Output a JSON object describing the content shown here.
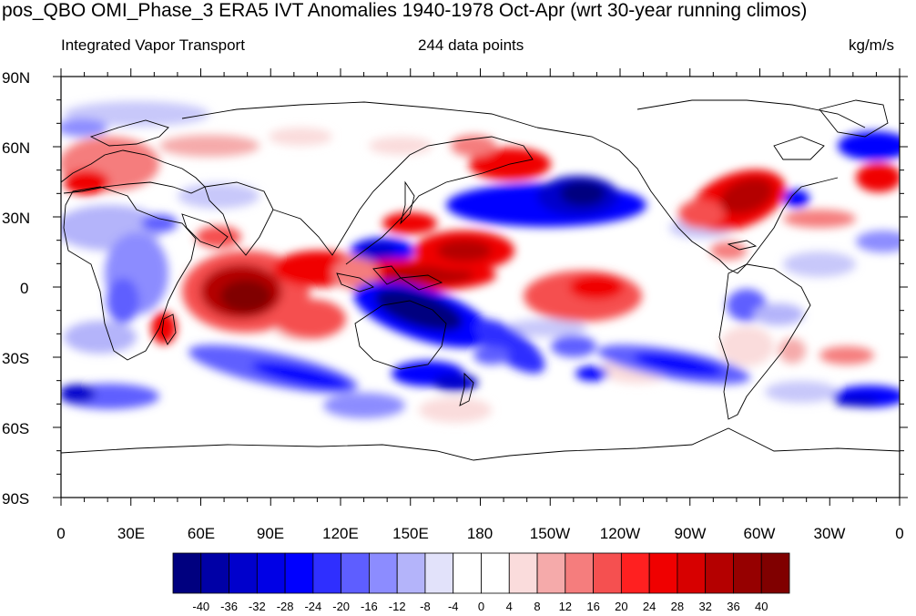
{
  "title": "pos_QBO OMI_Phase_3 ERA5 IVT Anomalies 1940-1978 Oct-Apr (wrt 30-year running climos)",
  "subtitle_left": "Integrated Vapor Transport",
  "subtitle_center": "244 data points",
  "subtitle_right": "kg/m/s",
  "lat_ticks": [
    "90N",
    "60N",
    "30N",
    "0",
    "30S",
    "60S",
    "90S"
  ],
  "lon_ticks": [
    "0",
    "30E",
    "60E",
    "90E",
    "120E",
    "150E",
    "180",
    "150W",
    "120W",
    "90W",
    "60W",
    "30W",
    "0"
  ],
  "colorbar": {
    "labels": [
      "-40",
      "-36",
      "-32",
      "-28",
      "-24",
      "-20",
      "-16",
      "-12",
      "-8",
      "-4",
      "0",
      "4",
      "8",
      "12",
      "16",
      "20",
      "24",
      "28",
      "32",
      "36",
      "40"
    ],
    "colors": [
      "#00007f",
      "#0000a6",
      "#0000cc",
      "#0000e6",
      "#0000ff",
      "#2f2fff",
      "#5e5eff",
      "#8c8cff",
      "#b4b4fa",
      "#e2e2fa",
      "#ffffff",
      "#ffffff",
      "#fadcdc",
      "#f5aaaa",
      "#f57d7d",
      "#f55050",
      "#ff2020",
      "#f00000",
      "#d70000",
      "#b40000",
      "#960000",
      "#800000"
    ]
  }
}
